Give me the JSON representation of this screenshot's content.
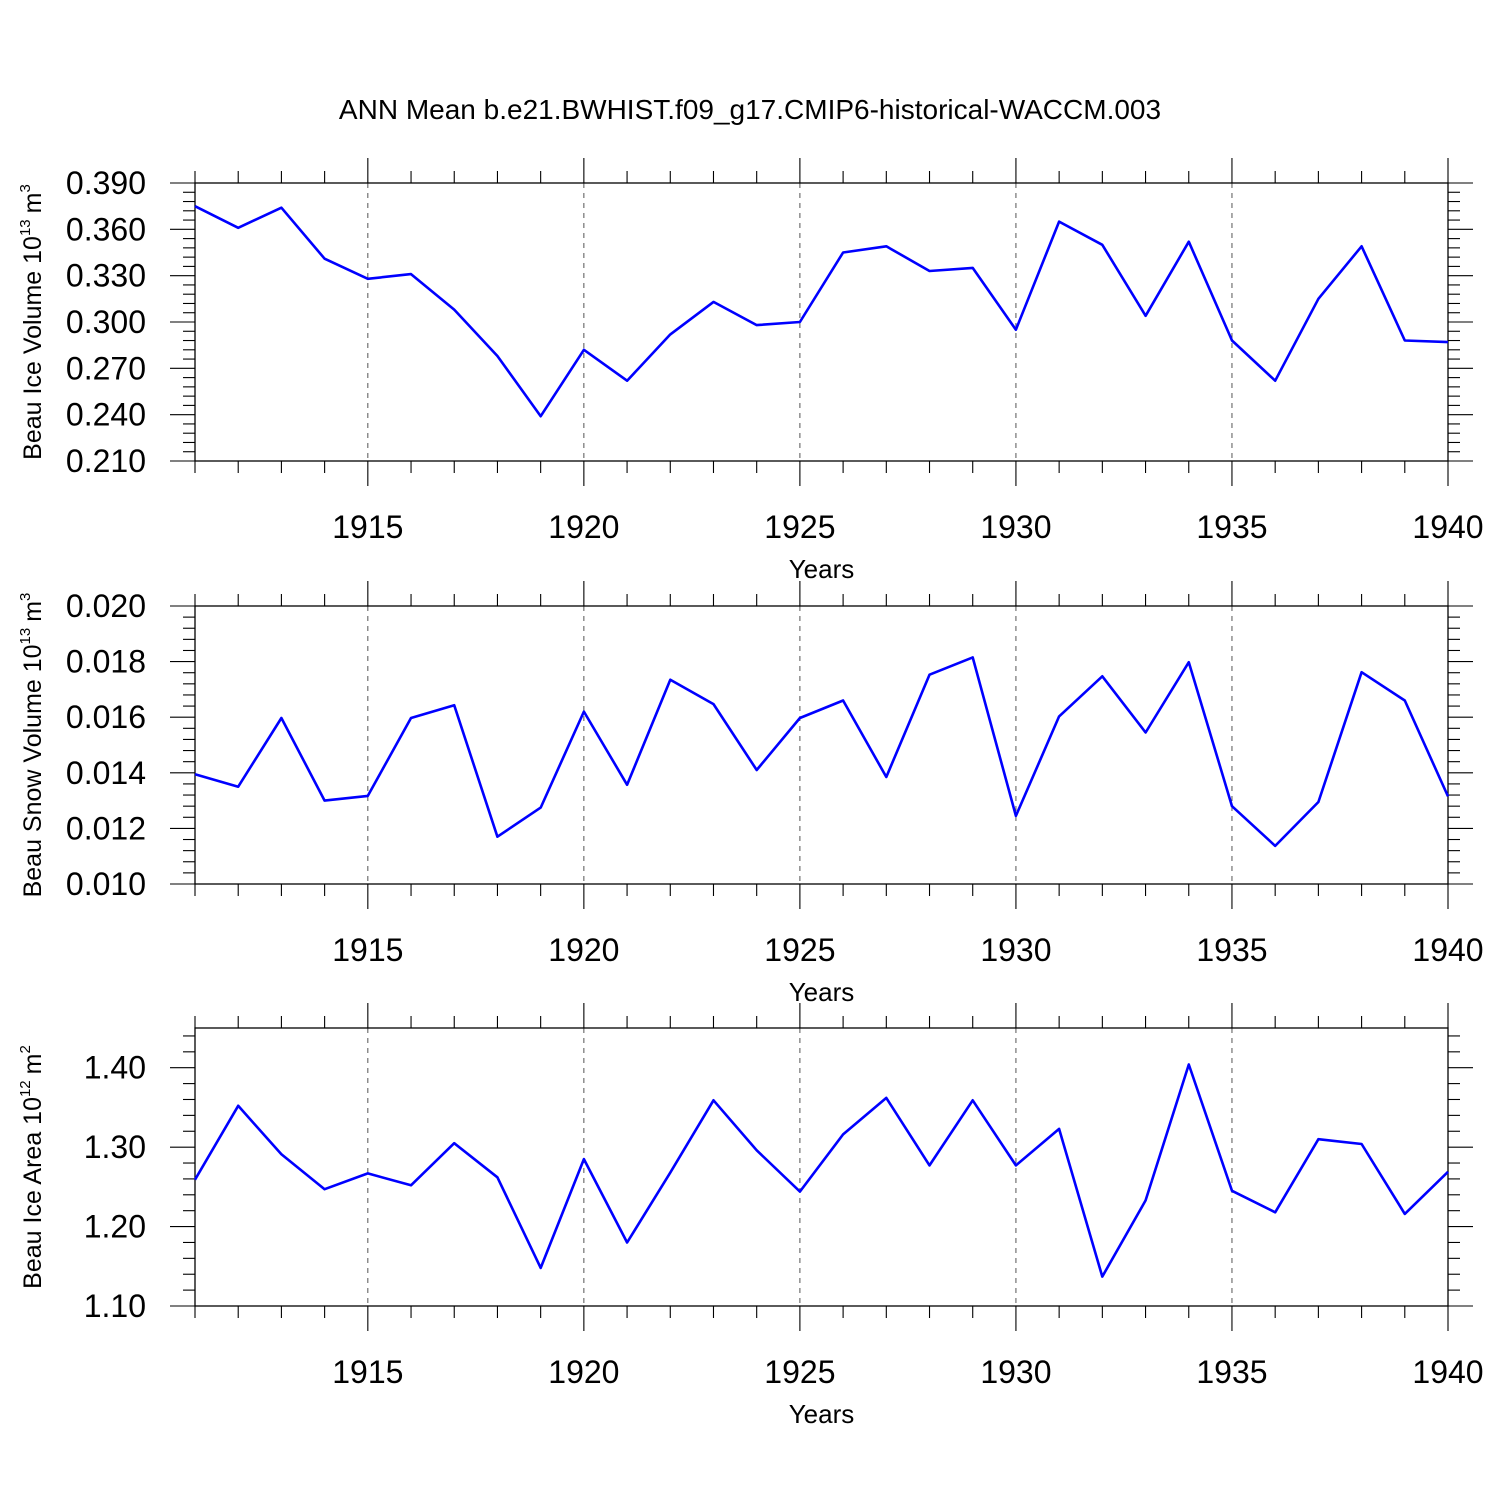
{
  "figure": {
    "title": "ANN Mean b.e21.BWHIST.f09_g17.CMIP6-historical-WACCM.003",
    "line_color": "#0000ff"
  },
  "chart_data": [
    {
      "type": "line",
      "xlabel": "Years",
      "ylabel": "Beau Ice Volume 10",
      "ylabel_exponent": "13",
      "ylabel_unit": "m",
      "ylabel_unit_exponent": "3",
      "xlim": [
        1911,
        1940
      ],
      "ylim": [
        0.21,
        0.39
      ],
      "yticks": [
        0.21,
        0.24,
        0.27,
        0.3,
        0.33,
        0.36,
        0.39
      ],
      "yticklabels": [
        "0.210",
        "0.240",
        "0.270",
        "0.300",
        "0.330",
        "0.360",
        "0.390"
      ],
      "xticks": [
        1915,
        1920,
        1925,
        1930,
        1935,
        1940
      ],
      "xticklabels": [
        "1915",
        "1920",
        "1925",
        "1930",
        "1935",
        "1940"
      ],
      "grid": "dashed vertical at major x ticks",
      "x": [
        1911,
        1912,
        1913,
        1914,
        1915,
        1916,
        1917,
        1918,
        1919,
        1920,
        1921,
        1922,
        1923,
        1924,
        1925,
        1926,
        1927,
        1928,
        1929,
        1930,
        1931,
        1932,
        1933,
        1934,
        1935,
        1936,
        1937,
        1938,
        1939,
        1940
      ],
      "series": [
        {
          "values": [
            0.375,
            0.361,
            0.374,
            0.341,
            0.328,
            0.331,
            0.308,
            0.278,
            0.239,
            0.282,
            0.262,
            0.292,
            0.313,
            0.298,
            0.3,
            0.345,
            0.349,
            0.333,
            0.335,
            0.295,
            0.365,
            0.35,
            0.304,
            0.352,
            0.288,
            0.262,
            0.315,
            0.349,
            0.288,
            0.287
          ]
        }
      ]
    },
    {
      "type": "line",
      "xlabel": "Years",
      "ylabel": "Beau Snow Volume 10",
      "ylabel_exponent": "13",
      "ylabel_unit": "m",
      "ylabel_unit_exponent": "3",
      "xlim": [
        1911,
        1940
      ],
      "ylim": [
        0.01,
        0.02
      ],
      "yticks": [
        0.01,
        0.012,
        0.014,
        0.016,
        0.018,
        0.02
      ],
      "yticklabels": [
        "0.010",
        "0.012",
        "0.014",
        "0.016",
        "0.018",
        "0.020"
      ],
      "xticks": [
        1915,
        1920,
        1925,
        1930,
        1935,
        1940
      ],
      "xticklabels": [
        "1915",
        "1920",
        "1925",
        "1930",
        "1935",
        "1940"
      ],
      "grid": "dashed vertical at major x ticks",
      "x": [
        1911,
        1912,
        1913,
        1914,
        1915,
        1916,
        1917,
        1918,
        1919,
        1920,
        1921,
        1922,
        1923,
        1924,
        1925,
        1926,
        1927,
        1928,
        1929,
        1930,
        1931,
        1932,
        1933,
        1934,
        1935,
        1936,
        1937,
        1938,
        1939,
        1940
      ],
      "series": [
        {
          "values": [
            0.01395,
            0.0135,
            0.01597,
            0.013,
            0.01317,
            0.01597,
            0.01643,
            0.0117,
            0.01275,
            0.0162,
            0.01357,
            0.01735,
            0.01647,
            0.0141,
            0.01597,
            0.0166,
            0.01385,
            0.01753,
            0.01815,
            0.01245,
            0.01603,
            0.01747,
            0.01545,
            0.01798,
            0.0128,
            0.01137,
            0.01295,
            0.01762,
            0.0166,
            0.01315
          ]
        }
      ]
    },
    {
      "type": "line",
      "xlabel": "Years",
      "ylabel": "Beau Ice Area 10",
      "ylabel_exponent": "12",
      "ylabel_unit": "m",
      "ylabel_unit_exponent": "2",
      "xlim": [
        1911,
        1940
      ],
      "ylim": [
        1.1,
        1.45
      ],
      "yticks": [
        1.1,
        1.2,
        1.3,
        1.4
      ],
      "yticklabels": [
        "1.10",
        "1.20",
        "1.30",
        "1.40"
      ],
      "xticks": [
        1915,
        1920,
        1925,
        1930,
        1935,
        1940
      ],
      "xticklabels": [
        "1915",
        "1920",
        "1925",
        "1930",
        "1935",
        "1940"
      ],
      "grid": "dashed vertical at major x ticks",
      "x": [
        1911,
        1912,
        1913,
        1914,
        1915,
        1916,
        1917,
        1918,
        1919,
        1920,
        1921,
        1922,
        1923,
        1924,
        1925,
        1926,
        1927,
        1928,
        1929,
        1930,
        1931,
        1932,
        1933,
        1934,
        1935,
        1936,
        1937,
        1938,
        1939,
        1940
      ],
      "series": [
        {
          "values": [
            1.259,
            1.352,
            1.291,
            1.247,
            1.267,
            1.252,
            1.305,
            1.262,
            1.148,
            1.285,
            1.18,
            1.268,
            1.359,
            1.296,
            1.244,
            1.316,
            1.362,
            1.277,
            1.359,
            1.277,
            1.323,
            1.137,
            1.233,
            1.404,
            1.245,
            1.218,
            1.31,
            1.304,
            1.216,
            1.269
          ]
        }
      ]
    }
  ]
}
